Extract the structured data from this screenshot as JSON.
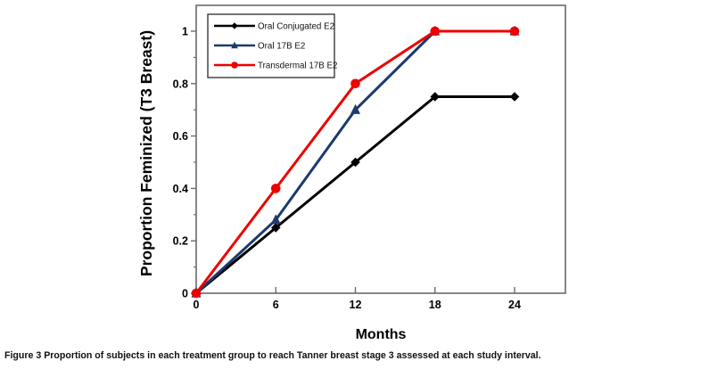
{
  "caption": {
    "label": "Figure 3",
    "text": "Proportion of subjects in each treatment group to reach Tanner breast stage 3 assessed at each study interval."
  },
  "chart_data": {
    "type": "line",
    "title": "",
    "xlabel": "Months",
    "ylabel": "Proportion Feminized (T3 Breast)",
    "x": [
      0,
      6,
      12,
      18,
      24
    ],
    "xticks": [
      0,
      6,
      12,
      18,
      24
    ],
    "xtick_labels": [
      "0",
      "6",
      "12",
      "18",
      "24"
    ],
    "xlim": [
      0,
      27.8
    ],
    "yticks": [
      0,
      0.2,
      0.4,
      0.6,
      0.8,
      1
    ],
    "ytick_labels": [
      "0",
      "0.2",
      "0.4",
      "0.6",
      "0.8",
      "1"
    ],
    "y_minor_step": 0.1,
    "ylim": [
      0,
      1.1
    ],
    "grid": false,
    "legend_position": "top-left-inside",
    "series": [
      {
        "name": "Oral Conjugated E2",
        "marker": "diamond",
        "color": "#000000",
        "values": [
          0,
          0.25,
          0.5,
          0.75,
          0.75
        ]
      },
      {
        "name": "Oral 17B E2",
        "marker": "triangle",
        "color": "#1b3a6e",
        "values": [
          0,
          0.28,
          0.7,
          1,
          1
        ]
      },
      {
        "name": "Transdermal 17B E2",
        "marker": "circle",
        "color": "#ee0000",
        "values": [
          0,
          0.4,
          0.8,
          1,
          1
        ]
      }
    ],
    "colors": {
      "axis_line": "#6b6b6b",
      "tick": "#6b6b6b",
      "tick_label": "#000000",
      "axis_title": "#000000",
      "legend_border": "#2b2b2b",
      "plot_bg": "#ffffff"
    }
  }
}
